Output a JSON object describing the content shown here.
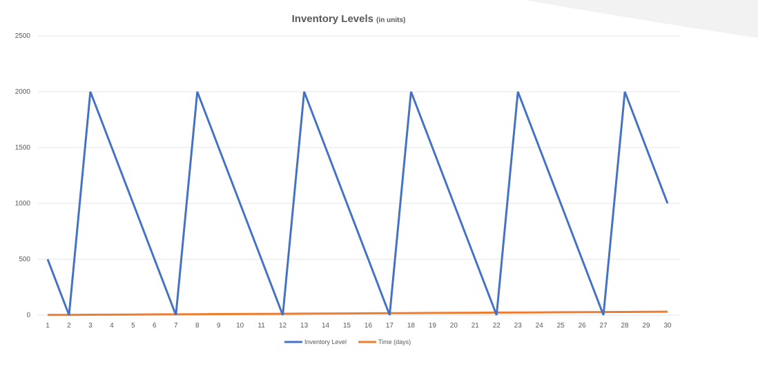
{
  "chart_data": {
    "type": "line",
    "title": "Inventory Levels",
    "title_suffix": "(in units)",
    "xlabel": "",
    "ylabel": "",
    "categories": [
      "1",
      "2",
      "3",
      "4",
      "5",
      "6",
      "7",
      "8",
      "9",
      "10",
      "11",
      "12",
      "13",
      "14",
      "15",
      "16",
      "17",
      "18",
      "19",
      "20",
      "21",
      "22",
      "23",
      "24",
      "25",
      "26",
      "27",
      "28",
      "29",
      "30"
    ],
    "ylim": [
      0,
      2500
    ],
    "y_ticks": [
      0,
      500,
      1000,
      1500,
      2000,
      2500
    ],
    "grid": true,
    "legend_position": "bottom",
    "series": [
      {
        "name": "Inventory Level",
        "color": "#4472c4",
        "values": [
          500,
          0,
          2000,
          1500,
          1000,
          500,
          0,
          2000,
          1500,
          1000,
          500,
          0,
          2000,
          1500,
          1000,
          500,
          0,
          2000,
          1500,
          1000,
          500,
          0,
          2000,
          1500,
          1000,
          500,
          0,
          2000,
          1500,
          1000
        ]
      },
      {
        "name": "Time (days)",
        "color": "#ed7d31",
        "values": [
          1,
          2,
          3,
          4,
          5,
          6,
          7,
          8,
          9,
          10,
          11,
          12,
          13,
          14,
          15,
          16,
          17,
          18,
          19,
          20,
          21,
          22,
          23,
          24,
          25,
          26,
          27,
          28,
          29,
          30
        ]
      }
    ]
  }
}
